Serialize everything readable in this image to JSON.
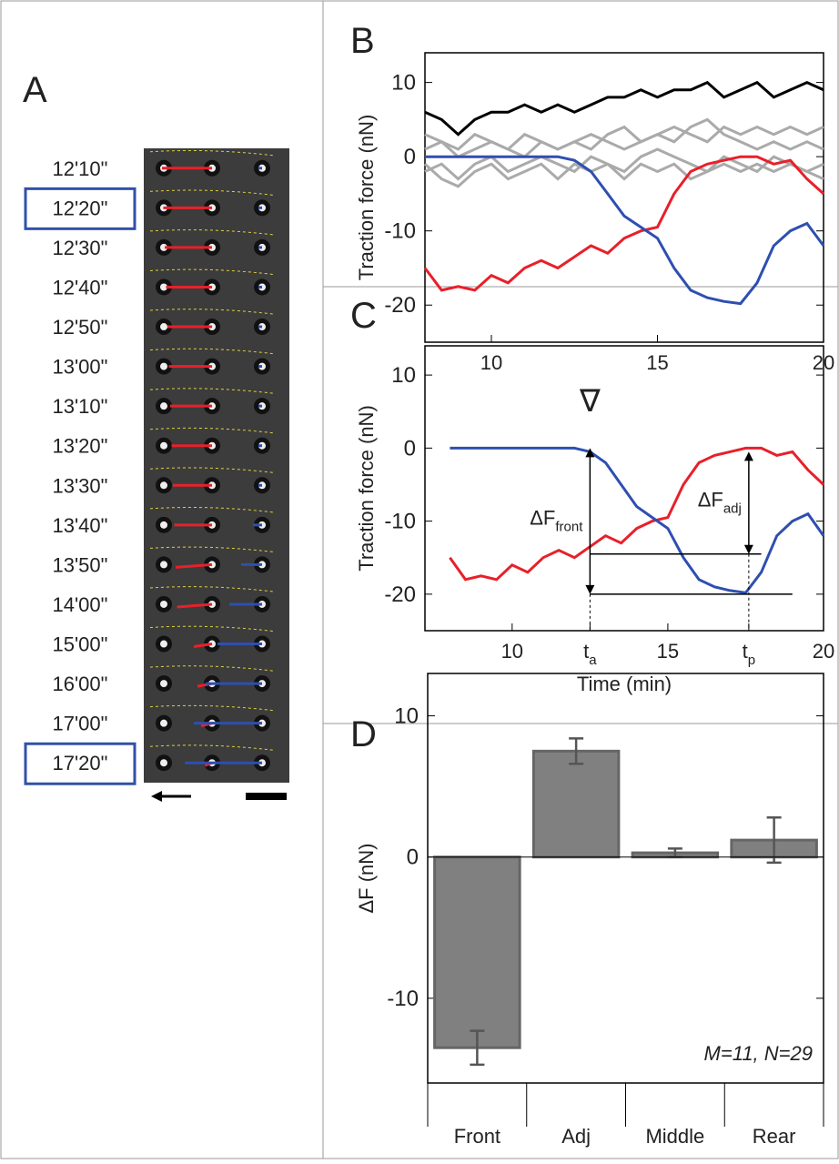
{
  "panel_a": {
    "label": "A",
    "times": [
      "12'10\"",
      "12'20\"",
      "12'30\"",
      "12'40\"",
      "12'50\"",
      "13'00\"",
      "13'10\"",
      "13'20\"",
      "13'30\"",
      "13'40\"",
      "13'50\"",
      "14'00\"",
      "15'00\"",
      "16'00\"",
      "17'00\"",
      "17'20\""
    ],
    "boxed": [
      1,
      15
    ]
  },
  "chart_data": [
    {
      "type": "line",
      "panel_label": "B",
      "ylabel": "Traction force (nN)",
      "x": [
        8,
        8.5,
        9,
        9.5,
        10,
        10.5,
        11,
        11.5,
        12,
        12.5,
        13,
        13.5,
        14,
        14.5,
        15,
        15.5,
        16,
        16.5,
        17,
        17.5,
        18,
        18.5,
        19,
        19.5,
        20
      ],
      "xlim": [
        8,
        20
      ],
      "xticks": [
        10,
        15,
        20
      ],
      "ylim": [
        -25,
        14
      ],
      "yticks": [
        10,
        0,
        -10,
        -20
      ],
      "series": [
        {
          "color": "#aaaaaa",
          "values": [
            1,
            2,
            0,
            1,
            2,
            1,
            0,
            2,
            1,
            2,
            3,
            2,
            1,
            2,
            3,
            4,
            3,
            2,
            4,
            3,
            4,
            3,
            4,
            3,
            4
          ]
        },
        {
          "color": "#aaaaaa",
          "values": [
            -2,
            -1,
            -3,
            -1,
            0,
            -2,
            -1,
            0,
            -1,
            -2,
            0,
            -1,
            -2,
            0,
            1,
            0,
            -1,
            -2,
            0,
            -1,
            -2,
            0,
            -1,
            -2,
            -1
          ]
        },
        {
          "color": "#aaaaaa",
          "values": [
            3,
            2,
            1,
            3,
            2,
            1,
            3,
            2,
            1,
            2,
            1,
            3,
            4,
            2,
            3,
            2,
            4,
            5,
            3,
            2,
            1,
            2,
            1,
            2,
            1
          ]
        },
        {
          "color": "#aaaaaa",
          "values": [
            -1,
            -3,
            -4,
            -2,
            -1,
            -3,
            -2,
            -1,
            -3,
            -1,
            -2,
            -1,
            -3,
            -1,
            -2,
            -1,
            -3,
            -2,
            -1,
            -2,
            -1,
            -2,
            -1,
            -2,
            -3
          ]
        },
        {
          "color": "#000000",
          "values": [
            6,
            5,
            3,
            5,
            6,
            6,
            7,
            6,
            7,
            6,
            7,
            8,
            8,
            9,
            8,
            9,
            9,
            10,
            8,
            9,
            10,
            8,
            9,
            10,
            9
          ]
        },
        {
          "color": "#e8202a",
          "values": [
            -15,
            -18,
            -17.5,
            -18,
            -16,
            -17,
            -15,
            -14,
            -15,
            -13.5,
            -12,
            -13,
            -11,
            -10,
            -9.5,
            -5,
            -2,
            -1,
            -0.5,
            0,
            0,
            -1,
            -0.5,
            -3,
            -5
          ]
        },
        {
          "color": "#2e4fb0",
          "values": [
            0,
            0,
            0,
            0,
            0,
            0,
            0,
            0,
            0,
            -0.5,
            -2,
            -5,
            -8,
            -9.5,
            -11,
            -15,
            -18,
            -19,
            -19.5,
            -19.8,
            -17,
            -12,
            -10,
            -9,
            -12
          ]
        }
      ]
    },
    {
      "type": "line",
      "panel_label": "C",
      "ylabel": "Traction force (nN)",
      "xlabel": "Time (min)",
      "x": [
        8,
        8.5,
        9,
        9.5,
        10,
        10.5,
        11,
        11.5,
        12,
        12.5,
        13,
        13.5,
        14,
        14.5,
        15,
        15.5,
        16,
        16.5,
        17,
        17.5,
        18,
        18.5,
        19,
        19.5,
        20
      ],
      "xlim": [
        7.2,
        20
      ],
      "xticks": [
        10,
        {
          "value": 12.5,
          "label": "t",
          "sub": "a"
        },
        15,
        {
          "value": 17.6,
          "label": "t",
          "sub": "p"
        },
        20
      ],
      "ylim": [
        -25,
        14
      ],
      "yticks": [
        10,
        0,
        -10,
        -20
      ],
      "series": [
        {
          "color": "#e8202a",
          "values": [
            -15,
            -18,
            -17.5,
            -18,
            -16,
            -17,
            -15,
            -14,
            -15,
            -13.5,
            -12,
            -13,
            -11,
            -10,
            -9.5,
            -5,
            -2,
            -1,
            -0.5,
            0,
            0,
            -1,
            -0.5,
            -3,
            -5
          ]
        },
        {
          "color": "#2e4fb0",
          "values": [
            0,
            0,
            0,
            0,
            0,
            0,
            0,
            0,
            0,
            -0.5,
            -2,
            -5,
            -8,
            -9.5,
            -11,
            -15,
            -18,
            -19,
            -19.5,
            -19.8,
            -17,
            -12,
            -10,
            -9,
            -12
          ]
        }
      ],
      "marker": {
        "text": "∇",
        "x": 12.5
      },
      "arrows": [
        {
          "x": 12.5,
          "from": 0,
          "to": -20,
          "text": "ΔF",
          "sub": "front"
        },
        {
          "x": 17.6,
          "from": -0.5,
          "to": -14.5,
          "text": "ΔF",
          "sub": "adj"
        }
      ],
      "reference_lines": [
        {
          "y": -14.5,
          "x": [
            12.5,
            18
          ]
        },
        {
          "y": -20,
          "x": [
            12.5,
            19
          ]
        }
      ]
    },
    {
      "type": "bar",
      "panel_label": "D",
      "ylabel": "ΔF (nN)",
      "categories": [
        "Front",
        "Adj",
        "Middle",
        "Rear"
      ],
      "values": [
        -13.5,
        7.5,
        0.3,
        1.2
      ],
      "errors": [
        1.2,
        0.9,
        0.3,
        1.6
      ],
      "color": "#808080",
      "ylim": [
        -16,
        13
      ],
      "yticks": [
        10,
        0,
        -10
      ],
      "annotation": "M=11, N=29"
    }
  ]
}
